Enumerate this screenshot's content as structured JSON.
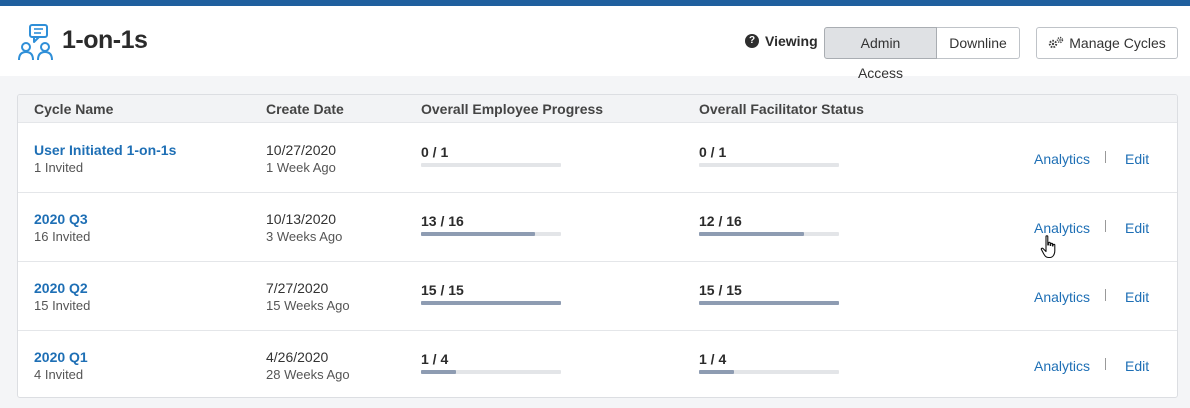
{
  "app": {
    "title": "1-on-1s",
    "logo_icon": "conversation-people-icon",
    "accent_color": "#1f5f9e"
  },
  "header": {
    "help_icon": "question-circle-icon",
    "viewing_label": "Viewing",
    "view_options": [
      "Admin Access",
      "Downline"
    ],
    "selected_view": "Admin Access",
    "manage_label": "Manage Cycles",
    "manage_icon": "gears-icon"
  },
  "table": {
    "columns": [
      "Cycle Name",
      "Create Date",
      "Overall Employee Progress",
      "Overall Facilitator Status"
    ],
    "rows": [
      {
        "name": "User Initiated 1-on-1s",
        "invited": "1 Invited",
        "date": "10/27/2020",
        "ago": "1 Week Ago",
        "employee": "0 / 1",
        "employee_progress": 0,
        "facilitator": "0 / 1",
        "facilitator_progress": 0,
        "analytics": "Analytics",
        "edit": "Edit"
      },
      {
        "name": "2020 Q3",
        "invited": "16 Invited",
        "date": "10/13/2020",
        "ago": "3 Weeks Ago",
        "employee": "13 / 16",
        "employee_progress": 0.8125,
        "facilitator": "12 / 16",
        "facilitator_progress": 0.75,
        "analytics": "Analytics",
        "edit": "Edit"
      },
      {
        "name": "2020 Q2",
        "invited": "15 Invited",
        "date": "7/27/2020",
        "ago": "15 Weeks Ago",
        "employee": "15 / 15",
        "employee_progress": 1,
        "facilitator": "15 / 15",
        "facilitator_progress": 1,
        "analytics": "Analytics",
        "edit": "Edit"
      },
      {
        "name": "2020 Q1",
        "invited": "4 Invited",
        "date": "4/26/2020",
        "ago": "28 Weeks Ago",
        "employee": "1 / 4",
        "employee_progress": 0.25,
        "facilitator": "1 / 4",
        "facilitator_progress": 0.25,
        "analytics": "Analytics",
        "edit": "Edit"
      }
    ]
  },
  "colors": {
    "link": "#1e6fb5",
    "progress_fill": "#8e9cb2",
    "progress_track": "#e3e5e8"
  }
}
